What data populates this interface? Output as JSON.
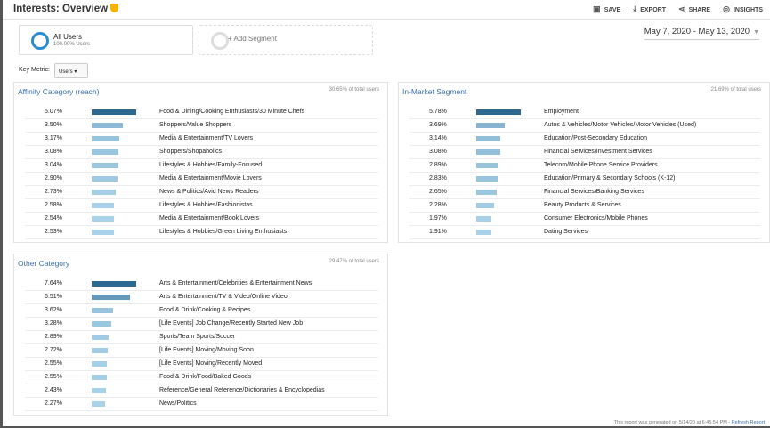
{
  "header": {
    "title": "Interests: Overview",
    "actions": [
      {
        "icon": "save-icon",
        "glyph": "▣",
        "label": "SAVE"
      },
      {
        "icon": "export-icon",
        "glyph": "⤓",
        "label": "EXPORT"
      },
      {
        "icon": "share-icon",
        "glyph": "⋖",
        "label": "SHARE"
      },
      {
        "icon": "insights-icon",
        "glyph": "◎",
        "label": "INSIGHTS"
      }
    ]
  },
  "segments": {
    "active": {
      "name": "All Users",
      "sub": "100.00% Users"
    },
    "add": "+ Add Segment"
  },
  "date_range": "May 7, 2020 - May 13, 2020",
  "key_metric": {
    "label": "Key Metric:",
    "value": "Users"
  },
  "colors": {
    "bar_dark": "#2d6891",
    "bar_light": "#a9d2ea",
    "link": "#3a6fb0"
  },
  "panels": [
    {
      "title": "Affinity Category (reach)",
      "total": "30.65% of total users",
      "rows": [
        {
          "value": 5.07,
          "pct": "5.07%",
          "label": "Food & Dining/Cooking Enthusiasts/30 Minute Chefs"
        },
        {
          "value": 3.5,
          "pct": "3.50%",
          "label": "Shoppers/Value Shoppers"
        },
        {
          "value": 3.17,
          "pct": "3.17%",
          "label": "Media & Entertainment/TV Lovers"
        },
        {
          "value": 3.08,
          "pct": "3.08%",
          "label": "Shoppers/Shopaholics"
        },
        {
          "value": 3.04,
          "pct": "3.04%",
          "label": "Lifestyles & Hobbies/Family-Focused"
        },
        {
          "value": 2.9,
          "pct": "2.90%",
          "label": "Media & Entertainment/Movie Lovers"
        },
        {
          "value": 2.73,
          "pct": "2.73%",
          "label": "News & Politics/Avid News Readers"
        },
        {
          "value": 2.58,
          "pct": "2.58%",
          "label": "Lifestyles & Hobbies/Fashionistas"
        },
        {
          "value": 2.54,
          "pct": "2.54%",
          "label": "Media & Entertainment/Book Lovers"
        },
        {
          "value": 2.53,
          "pct": "2.53%",
          "label": "Lifestyles & Hobbies/Green Living Enthusiasts"
        }
      ]
    },
    {
      "title": "In-Market Segment",
      "total": "21.69% of total users",
      "rows": [
        {
          "value": 5.78,
          "pct": "5.78%",
          "label": "Employment"
        },
        {
          "value": 3.69,
          "pct": "3.69%",
          "label": "Autos & Vehicles/Motor Vehicles/Motor Vehicles (Used)"
        },
        {
          "value": 3.14,
          "pct": "3.14%",
          "label": "Education/Post-Secondary Education"
        },
        {
          "value": 3.08,
          "pct": "3.08%",
          "label": "Financial Services/Investment Services"
        },
        {
          "value": 2.89,
          "pct": "2.89%",
          "label": "Telecom/Mobile Phone Service Providers"
        },
        {
          "value": 2.83,
          "pct": "2.83%",
          "label": "Education/Primary & Secondary Schools (K-12)"
        },
        {
          "value": 2.65,
          "pct": "2.65%",
          "label": "Financial Services/Banking Services"
        },
        {
          "value": 2.28,
          "pct": "2.28%",
          "label": "Beauty Products & Services"
        },
        {
          "value": 1.97,
          "pct": "1.97%",
          "label": "Consumer Electronics/Mobile Phones"
        },
        {
          "value": 1.91,
          "pct": "1.91%",
          "label": "Dating Services"
        }
      ]
    },
    {
      "title": "Other Category",
      "total": "29.47% of total users",
      "rows": [
        {
          "value": 7.64,
          "pct": "7.64%",
          "label": "Arts & Entertainment/Celebrities & Entertainment News"
        },
        {
          "value": 6.51,
          "pct": "6.51%",
          "label": "Arts & Entertainment/TV & Video/Online Video"
        },
        {
          "value": 3.62,
          "pct": "3.62%",
          "label": "Food & Drink/Cooking & Recipes"
        },
        {
          "value": 3.28,
          "pct": "3.28%",
          "label": "[Life Events] Job Change/Recently Started New Job"
        },
        {
          "value": 2.89,
          "pct": "2.89%",
          "label": "Sports/Team Sports/Soccer"
        },
        {
          "value": 2.72,
          "pct": "2.72%",
          "label": "[Life Events] Moving/Moving Soon"
        },
        {
          "value": 2.55,
          "pct": "2.55%",
          "label": "[Life Events] Moving/Recently Moved"
        },
        {
          "value": 2.55,
          "pct": "2.55%",
          "label": "Food & Drink/Food/Baked Goods"
        },
        {
          "value": 2.43,
          "pct": "2.43%",
          "label": "Reference/General Reference/Dictionaries & Encyclopedias"
        },
        {
          "value": 2.27,
          "pct": "2.27%",
          "label": "News/Politics"
        }
      ]
    }
  ],
  "footer": {
    "text": "This report was generated on 5/14/20 at 6:45:54 PM - ",
    "link": "Refresh Report"
  }
}
